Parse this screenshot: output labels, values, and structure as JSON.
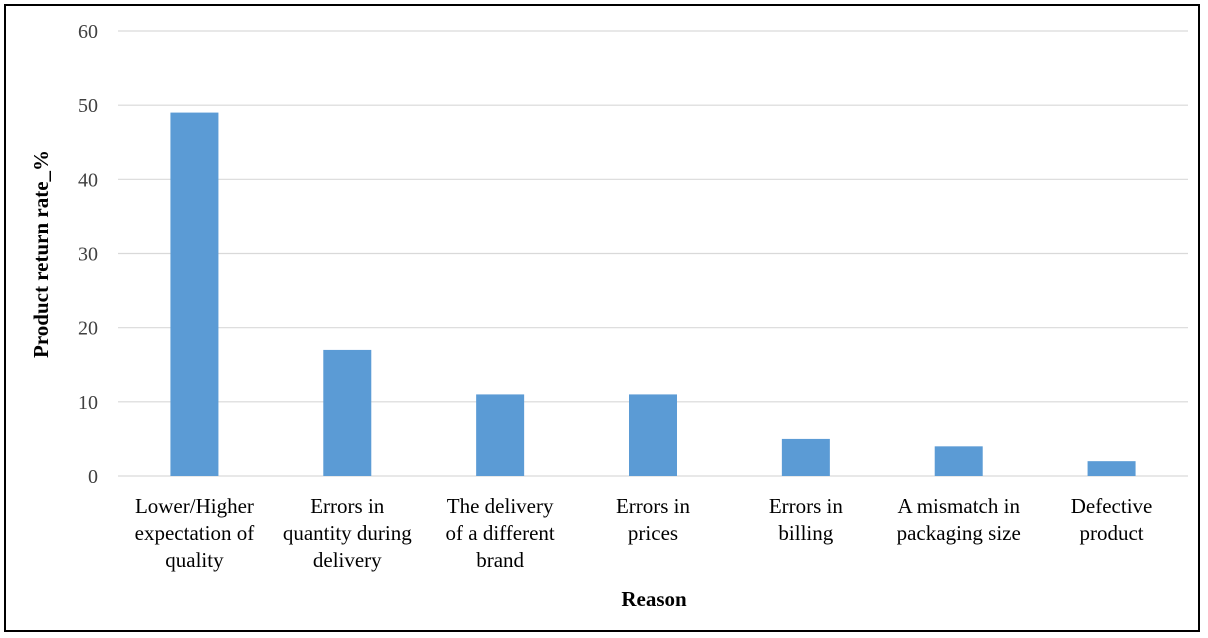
{
  "chart_data": {
    "type": "bar",
    "categories": [
      [
        "Lower/Higher",
        "expectation of",
        "quality"
      ],
      [
        "Errors in",
        "quantity during",
        "delivery"
      ],
      [
        "The delivery",
        "of a different",
        "brand"
      ],
      [
        "Errors in",
        "prices"
      ],
      [
        "Errors in",
        "billing"
      ],
      [
        "A mismatch in",
        "packaging size"
      ],
      [
        "Defective",
        "product"
      ]
    ],
    "values": [
      49,
      17,
      11,
      11,
      5,
      4,
      2
    ],
    "xlabel": "Reason",
    "ylabel": "Product return rate_%",
    "ylim": [
      0,
      60
    ],
    "yticks": [
      0,
      10,
      20,
      30,
      40,
      50,
      60
    ],
    "grid": true,
    "bar_color": "#5b9bd5",
    "grid_color": "#d9d9d9"
  }
}
